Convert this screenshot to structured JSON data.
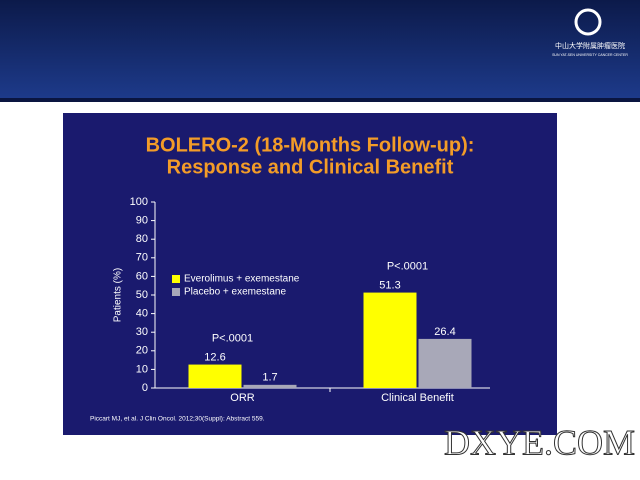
{
  "header": {
    "logo_cn": "中山大学附属肿瘤医院",
    "logo_en": "SUN YAT-SEN UNIVERSITY CANCER CENTER"
  },
  "watermark": "DXYE.COM",
  "chart_data": {
    "type": "bar",
    "title": [
      "BOLERO-2 (18-Months Follow-up):",
      "Response and Clinical Benefit"
    ],
    "y_label": "Patients (%)",
    "categories": [
      "ORR",
      "Clinical Benefit"
    ],
    "series": [
      {
        "name": "Everolimus + exemestane",
        "color": "#ffff00",
        "values": [
          12.6,
          51.3
        ]
      },
      {
        "name": "Placebo + exemestane",
        "color": "#a8a8b8",
        "values": [
          1.7,
          26.4
        ]
      }
    ],
    "annotations": [
      "P<.0001",
      "P<.0001"
    ],
    "ylim": [
      0,
      100
    ],
    "yticks": [
      0,
      10,
      20,
      30,
      40,
      50,
      60,
      70,
      80,
      90,
      100
    ],
    "legend": "center left",
    "source": "Piccart MJ, et al. J Clin Oncol. 2012;30(Suppl): Abstract 559."
  }
}
